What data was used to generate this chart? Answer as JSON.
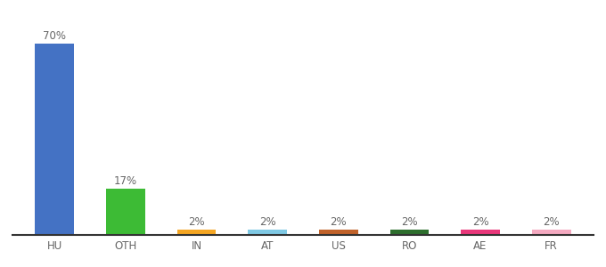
{
  "categories": [
    "HU",
    "OTH",
    "IN",
    "AT",
    "US",
    "RO",
    "AE",
    "FR"
  ],
  "values": [
    70,
    17,
    2,
    2,
    2,
    2,
    2,
    2
  ],
  "bar_colors": [
    "#4472c4",
    "#3dbb35",
    "#f5a623",
    "#7ec8e3",
    "#c0622a",
    "#2d6e2d",
    "#e8377a",
    "#f4a9c0"
  ],
  "ylim": [
    0,
    78
  ],
  "background_color": "#ffffff",
  "label_fontsize": 8.5,
  "tick_fontsize": 8.5,
  "title_fontsize": 10,
  "bar_width": 0.55
}
